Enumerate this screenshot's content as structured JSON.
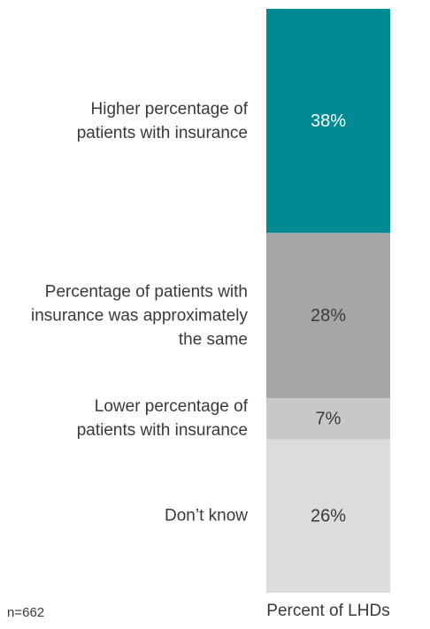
{
  "chart_data": {
    "type": "stacked-bar",
    "categories": [
      "Higher percentage of patients with insurance",
      "Percentage of patients with insurance was approximately the same",
      "Lower percentage of patients with insurance",
      "Don’t know"
    ],
    "values": [
      38,
      28,
      7,
      26
    ],
    "value_labels": [
      "38%",
      "28%",
      "7%",
      "26%"
    ],
    "colors": [
      "#008b94",
      "#a6a6a6",
      "#c8c8c8",
      "#dcdcdc"
    ],
    "x_label": "Percent of LHDs",
    "note": "n=662"
  }
}
